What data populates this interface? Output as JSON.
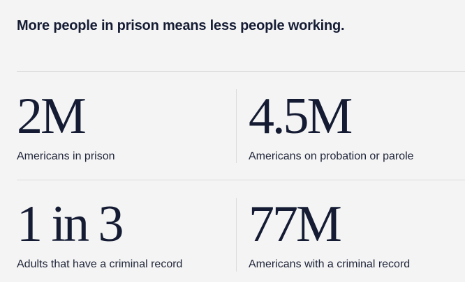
{
  "title": "More people in prison means less people working.",
  "stats": [
    {
      "value": "2M",
      "label": "Americans in prison"
    },
    {
      "value": "4.5M",
      "label": "Americans on probation or parole"
    },
    {
      "value": "1 in 3",
      "label": "Adults that have a criminal record"
    },
    {
      "value": "77M",
      "label": "Americans with a criminal record"
    }
  ]
}
